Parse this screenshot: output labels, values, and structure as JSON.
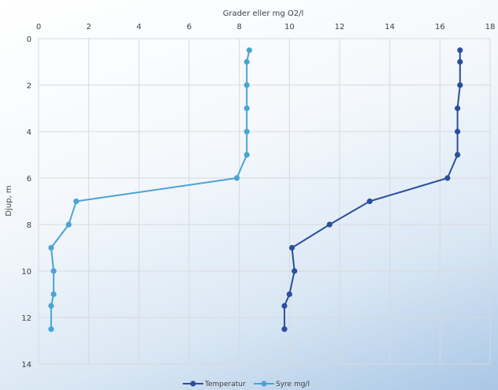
{
  "chart_data": {
    "type": "line",
    "xlabel": "Grader eller mg O2/l",
    "ylabel": "Djup, m",
    "xlim": [
      0,
      18
    ],
    "ylim": [
      0,
      14
    ],
    "y_inverted": true,
    "x_axis_position": "top",
    "x_ticks": [
      0,
      2,
      4,
      6,
      8,
      10,
      12,
      14,
      16,
      18
    ],
    "y_ticks": [
      0,
      2,
      4,
      6,
      8,
      10,
      12,
      14
    ],
    "grid": true,
    "legend_position": "bottom",
    "series": [
      {
        "name": "Temperatur",
        "color": "#2a4f9e",
        "points": [
          {
            "x": 16.8,
            "y": 0.5
          },
          {
            "x": 16.8,
            "y": 1
          },
          {
            "x": 16.8,
            "y": 2
          },
          {
            "x": 16.7,
            "y": 3
          },
          {
            "x": 16.7,
            "y": 4
          },
          {
            "x": 16.7,
            "y": 5
          },
          {
            "x": 16.3,
            "y": 6
          },
          {
            "x": 13.2,
            "y": 7
          },
          {
            "x": 11.6,
            "y": 8
          },
          {
            "x": 10.1,
            "y": 9
          },
          {
            "x": 10.2,
            "y": 10
          },
          {
            "x": 10.0,
            "y": 11
          },
          {
            "x": 9.8,
            "y": 11.5
          },
          {
            "x": 9.8,
            "y": 12.5
          }
        ]
      },
      {
        "name": "Syre mg/l",
        "color": "#4aa3d6",
        "points": [
          {
            "x": 8.4,
            "y": 0.5
          },
          {
            "x": 8.3,
            "y": 1
          },
          {
            "x": 8.3,
            "y": 2
          },
          {
            "x": 8.3,
            "y": 3
          },
          {
            "x": 8.3,
            "y": 4
          },
          {
            "x": 8.3,
            "y": 5
          },
          {
            "x": 7.9,
            "y": 6
          },
          {
            "x": 1.5,
            "y": 7
          },
          {
            "x": 1.2,
            "y": 8
          },
          {
            "x": 0.5,
            "y": 9
          },
          {
            "x": 0.6,
            "y": 10
          },
          {
            "x": 0.6,
            "y": 11
          },
          {
            "x": 0.5,
            "y": 11.5
          },
          {
            "x": 0.5,
            "y": 12.5
          }
        ]
      }
    ]
  }
}
